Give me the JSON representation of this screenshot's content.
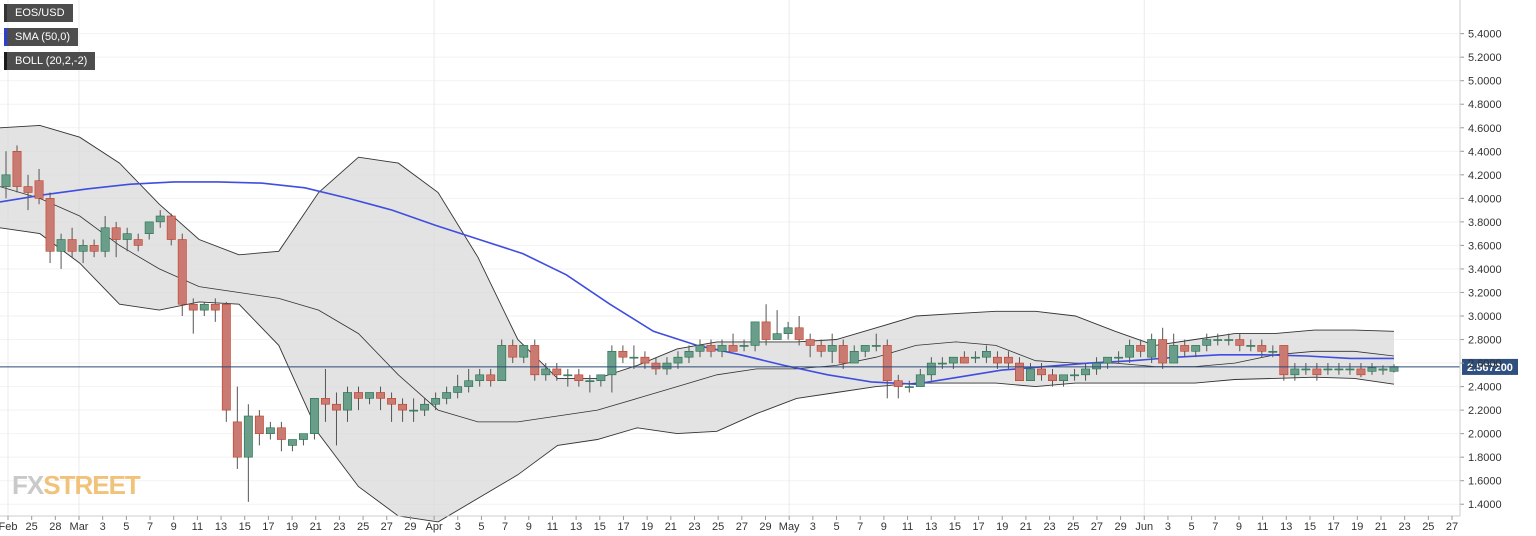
{
  "legends": {
    "symbol": "EOS/USD",
    "sma": "SMA (50,0)",
    "boll": "BOLL (20,2,-2)"
  },
  "price_tag": "2.567200",
  "logo": {
    "part1": "FX",
    "part2": "STREET"
  },
  "colors": {
    "up": "#6a9e8a",
    "down": "#c97b73",
    "up_dark": "#1f6e4a",
    "down_dark": "#c23b22",
    "sma": "#3f4de0",
    "band_fill": "#d9d9d9",
    "band_line": "#333333",
    "price_line": "#2a4a7a",
    "price_tag_bg": "#2f4f7f"
  },
  "chart_data": {
    "type": "candlestick",
    "ylim": [
      1.3,
      5.55
    ],
    "y_ticks": [
      "1.4000",
      "1.6000",
      "1.8000",
      "2.0000",
      "2.2000",
      "2.4000",
      "2.6000",
      "2.8000",
      "3.0000",
      "3.2000",
      "3.4000",
      "3.6000",
      "3.8000",
      "4.0000",
      "4.2000",
      "4.4000",
      "4.6000",
      "4.8000",
      "5.0000",
      "5.2000",
      "5.4000"
    ],
    "x_ticks": [
      "Feb",
      "25",
      "28",
      "Mar",
      "3",
      "5",
      "7",
      "9",
      "11",
      "13",
      "15",
      "17",
      "19",
      "21",
      "23",
      "25",
      "27",
      "29",
      "Apr",
      "3",
      "5",
      "7",
      "9",
      "11",
      "13",
      "15",
      "17",
      "19",
      "21",
      "23",
      "25",
      "27",
      "29",
      "May",
      "3",
      "5",
      "7",
      "9",
      "11",
      "13",
      "15",
      "17",
      "19",
      "21",
      "23",
      "25",
      "27",
      "29",
      "Jun",
      "3",
      "5",
      "7",
      "9",
      "11",
      "13",
      "15",
      "17",
      "19",
      "21",
      "23",
      "25",
      "27"
    ],
    "last_price": 2.5672,
    "candles": [
      [
        4.1,
        4.4,
        4.2,
        4.0
      ],
      [
        4.4,
        4.45,
        4.1,
        4.05
      ],
      [
        4.1,
        4.2,
        4.05,
        3.9
      ],
      [
        4.15,
        4.25,
        4.0,
        3.95
      ],
      [
        4.0,
        4.05,
        3.55,
        3.45
      ],
      [
        3.55,
        3.7,
        3.65,
        3.4
      ],
      [
        3.65,
        3.75,
        3.55,
        3.5
      ],
      [
        3.55,
        3.65,
        3.6,
        3.45
      ],
      [
        3.6,
        3.65,
        3.55,
        3.5
      ],
      [
        3.55,
        3.85,
        3.75,
        3.5
      ],
      [
        3.75,
        3.8,
        3.65,
        3.5
      ],
      [
        3.65,
        3.75,
        3.7,
        3.55
      ],
      [
        3.65,
        3.7,
        3.6,
        3.55
      ],
      [
        3.7,
        3.8,
        3.8,
        3.65
      ],
      [
        3.8,
        3.9,
        3.85,
        3.75
      ],
      [
        3.85,
        3.87,
        3.65,
        3.6
      ],
      [
        3.65,
        3.7,
        3.1,
        3.0
      ],
      [
        3.1,
        3.15,
        3.05,
        2.85
      ],
      [
        3.05,
        3.12,
        3.1,
        3.0
      ],
      [
        3.1,
        3.15,
        3.05,
        2.95
      ],
      [
        3.1,
        3.12,
        2.2,
        2.1
      ],
      [
        2.1,
        2.4,
        1.8,
        1.7
      ],
      [
        1.8,
        2.25,
        2.15,
        1.42
      ],
      [
        2.15,
        2.2,
        2.0,
        1.9
      ],
      [
        2.0,
        2.1,
        2.05,
        1.95
      ],
      [
        2.05,
        2.1,
        1.95,
        1.85
      ],
      [
        1.9,
        1.95,
        1.95,
        1.85
      ],
      [
        1.95,
        2.0,
        2.0,
        1.9
      ],
      [
        2.0,
        2.3,
        2.3,
        1.95
      ],
      [
        2.3,
        2.55,
        2.25,
        2.1
      ],
      [
        2.25,
        2.35,
        2.2,
        1.9
      ],
      [
        2.2,
        2.4,
        2.35,
        2.1
      ],
      [
        2.35,
        2.4,
        2.3,
        2.2
      ],
      [
        2.3,
        2.35,
        2.35,
        2.25
      ],
      [
        2.35,
        2.4,
        2.3,
        2.2
      ],
      [
        2.3,
        2.35,
        2.25,
        2.1
      ],
      [
        2.25,
        2.3,
        2.2,
        2.1
      ],
      [
        2.2,
        2.3,
        2.2,
        2.1
      ],
      [
        2.2,
        2.3,
        2.25,
        2.15
      ],
      [
        2.25,
        2.35,
        2.3,
        2.2
      ],
      [
        2.3,
        2.4,
        2.35,
        2.25
      ],
      [
        2.35,
        2.5,
        2.4,
        2.3
      ],
      [
        2.4,
        2.55,
        2.45,
        2.35
      ],
      [
        2.45,
        2.55,
        2.5,
        2.4
      ],
      [
        2.5,
        2.55,
        2.45,
        2.4
      ],
      [
        2.45,
        2.8,
        2.75,
        2.45
      ],
      [
        2.75,
        2.8,
        2.65,
        2.6
      ],
      [
        2.65,
        2.75,
        2.75,
        2.6
      ],
      [
        2.75,
        2.8,
        2.5,
        2.45
      ],
      [
        2.5,
        2.6,
        2.55,
        2.45
      ],
      [
        2.55,
        2.6,
        2.5,
        2.45
      ],
      [
        2.5,
        2.55,
        2.5,
        2.4
      ],
      [
        2.5,
        2.55,
        2.45,
        2.4
      ],
      [
        2.45,
        2.5,
        2.45,
        2.35
      ],
      [
        2.45,
        2.5,
        2.5,
        2.4
      ],
      [
        2.5,
        2.75,
        2.7,
        2.35
      ],
      [
        2.7,
        2.75,
        2.65,
        2.6
      ],
      [
        2.65,
        2.75,
        2.65,
        2.55
      ],
      [
        2.65,
        2.7,
        2.6,
        2.55
      ],
      [
        2.6,
        2.65,
        2.55,
        2.5
      ],
      [
        2.55,
        2.65,
        2.6,
        2.5
      ],
      [
        2.6,
        2.7,
        2.65,
        2.55
      ],
      [
        2.65,
        2.75,
        2.7,
        2.6
      ],
      [
        2.7,
        2.8,
        2.75,
        2.65
      ],
      [
        2.75,
        2.8,
        2.7,
        2.65
      ],
      [
        2.7,
        2.8,
        2.75,
        2.65
      ],
      [
        2.75,
        2.85,
        2.7,
        2.7
      ],
      [
        2.75,
        2.8,
        2.75,
        2.7
      ],
      [
        2.75,
        2.95,
        2.95,
        2.7
      ],
      [
        2.95,
        3.1,
        2.8,
        2.75
      ],
      [
        2.8,
        3.05,
        2.85,
        2.8
      ],
      [
        2.85,
        2.95,
        2.9,
        2.8
      ],
      [
        2.9,
        3.0,
        2.8,
        2.75
      ],
      [
        2.8,
        2.85,
        2.75,
        2.65
      ],
      [
        2.75,
        2.8,
        2.7,
        2.65
      ],
      [
        2.7,
        2.85,
        2.75,
        2.6
      ],
      [
        2.75,
        2.8,
        2.6,
        2.55
      ],
      [
        2.6,
        2.75,
        2.7,
        2.6
      ],
      [
        2.7,
        2.75,
        2.75,
        2.65
      ],
      [
        2.75,
        2.85,
        2.75,
        2.7
      ],
      [
        2.75,
        2.8,
        2.45,
        2.3
      ],
      [
        2.45,
        2.5,
        2.4,
        2.3
      ],
      [
        2.4,
        2.45,
        2.4,
        2.35
      ],
      [
        2.4,
        2.55,
        2.5,
        2.4
      ],
      [
        2.5,
        2.65,
        2.6,
        2.45
      ],
      [
        2.6,
        2.65,
        2.6,
        2.55
      ],
      [
        2.6,
        2.65,
        2.65,
        2.55
      ],
      [
        2.65,
        2.7,
        2.6,
        2.6
      ],
      [
        2.65,
        2.7,
        2.65,
        2.6
      ],
      [
        2.65,
        2.75,
        2.7,
        2.6
      ],
      [
        2.65,
        2.7,
        2.6,
        2.55
      ],
      [
        2.65,
        2.7,
        2.6,
        2.55
      ],
      [
        2.6,
        2.65,
        2.45,
        2.45
      ],
      [
        2.45,
        2.6,
        2.55,
        2.45
      ],
      [
        2.55,
        2.6,
        2.5,
        2.45
      ],
      [
        2.5,
        2.55,
        2.45,
        2.4
      ],
      [
        2.45,
        2.5,
        2.5,
        2.4
      ],
      [
        2.5,
        2.55,
        2.5,
        2.45
      ],
      [
        2.5,
        2.6,
        2.55,
        2.45
      ],
      [
        2.55,
        2.65,
        2.6,
        2.5
      ],
      [
        2.6,
        2.65,
        2.65,
        2.55
      ],
      [
        2.65,
        2.7,
        2.65,
        2.6
      ],
      [
        2.65,
        2.8,
        2.75,
        2.6
      ],
      [
        2.75,
        2.8,
        2.7,
        2.65
      ],
      [
        2.65,
        2.85,
        2.8,
        2.6
      ],
      [
        2.8,
        2.9,
        2.6,
        2.55
      ],
      [
        2.6,
        2.85,
        2.75,
        2.6
      ],
      [
        2.75,
        2.8,
        2.7,
        2.65
      ],
      [
        2.7,
        2.75,
        2.75,
        2.65
      ],
      [
        2.75,
        2.85,
        2.8,
        2.7
      ],
      [
        2.8,
        2.85,
        2.8,
        2.75
      ],
      [
        2.8,
        2.85,
        2.8,
        2.75
      ],
      [
        2.8,
        2.85,
        2.75,
        2.7
      ],
      [
        2.75,
        2.8,
        2.75,
        2.7
      ],
      [
        2.75,
        2.8,
        2.7,
        2.65
      ],
      [
        2.7,
        2.75,
        2.7,
        2.65
      ],
      [
        2.75,
        2.75,
        2.5,
        2.45
      ],
      [
        2.5,
        2.6,
        2.55,
        2.45
      ],
      [
        2.55,
        2.6,
        2.55,
        2.5
      ],
      [
        2.55,
        2.6,
        2.5,
        2.45
      ],
      [
        2.55,
        2.6,
        2.55,
        2.5
      ],
      [
        2.55,
        2.6,
        2.55,
        2.5
      ],
      [
        2.55,
        2.6,
        2.55,
        2.5
      ],
      [
        2.55,
        2.6,
        2.5,
        2.48
      ],
      [
        2.53,
        2.6,
        2.56,
        2.5
      ],
      [
        2.54,
        2.58,
        2.55,
        2.5
      ],
      [
        2.53,
        2.59,
        2.57,
        2.52
      ]
    ],
    "sma": [
      3.97,
      4.03,
      4.08,
      4.12,
      4.14,
      4.14,
      4.13,
      4.09,
      4.0,
      3.9,
      3.77,
      3.65,
      3.53,
      3.35,
      3.1,
      2.87,
      2.75,
      2.67,
      2.58,
      2.5,
      2.44,
      2.42,
      2.48,
      2.54,
      2.57,
      2.6,
      2.62,
      2.65,
      2.67,
      2.67,
      2.66,
      2.64,
      2.64
    ],
    "bb_upper": [
      4.6,
      4.62,
      4.52,
      4.3,
      3.95,
      3.65,
      3.52,
      3.55,
      4.05,
      4.35,
      4.3,
      4.05,
      3.5,
      2.8,
      2.47,
      2.47,
      2.58,
      2.72,
      2.78,
      2.78,
      2.78,
      2.8,
      2.9,
      3.0,
      3.02,
      3.04,
      3.04,
      3.0,
      2.87,
      2.75,
      2.8,
      2.85,
      2.85,
      2.88,
      2.88,
      2.87
    ],
    "bb_mid": [
      4.1,
      4.0,
      3.85,
      3.6,
      3.4,
      3.25,
      3.2,
      3.15,
      3.05,
      2.85,
      2.5,
      2.2,
      2.1,
      2.1,
      2.15,
      2.2,
      2.3,
      2.4,
      2.5,
      2.55,
      2.55,
      2.58,
      2.65,
      2.75,
      2.78,
      2.75,
      2.62,
      2.6,
      2.6,
      2.57,
      2.57,
      2.6,
      2.67,
      2.7,
      2.7,
      2.66
    ],
    "bb_lower": [
      3.75,
      3.7,
      3.45,
      3.1,
      3.05,
      3.12,
      3.1,
      2.75,
      2.0,
      1.55,
      1.3,
      1.25,
      1.45,
      1.65,
      1.9,
      1.95,
      2.05,
      2.0,
      2.02,
      2.17,
      2.3,
      2.35,
      2.4,
      2.43,
      2.43,
      2.43,
      2.4,
      2.43,
      2.43,
      2.43,
      2.43,
      2.46,
      2.47,
      2.48,
      2.47,
      2.42
    ]
  }
}
